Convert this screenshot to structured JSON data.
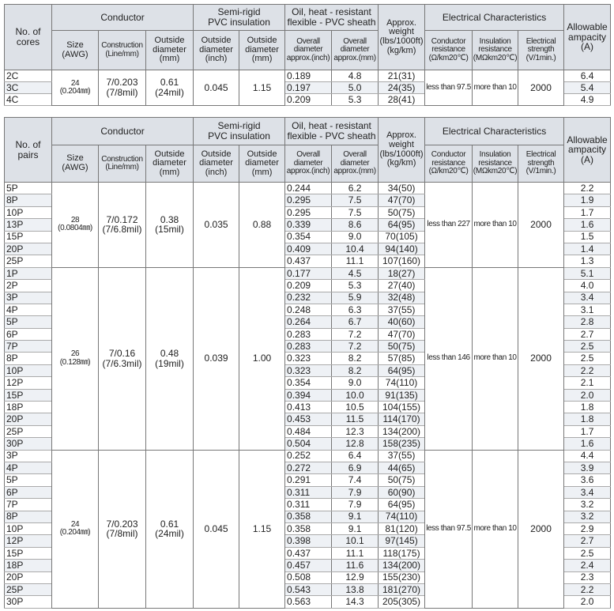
{
  "tables": [
    {
      "header": {
        "number": "No. of cores",
        "conductor": "Conductor",
        "insulation": "Semi-rigid\nPVC insulation",
        "sheath": "Oil, heat - resistant\nflexible - PVC sheath",
        "weight": "Approx.\nweight\n(lbs/1000ft)\n(kg/km)",
        "electrical": "Electrical Characteristics",
        "ampacity": "Allowable\nampacity\n(A)",
        "sub": [
          "Size\n(AWG)",
          "Construction\n(Line/mm)",
          "Outside\ndiameter\n(mm)",
          "Outside\ndiameter\n(inch)",
          "Outside\ndiameter\n(mm)",
          "Overall\ndiameter\napprox.(inch)",
          "Overall\ndiameter\napprox.(mm)",
          "Conductor\nresistance\n(Ω/km20℃)",
          "Insulation\nresistance\n(MΩkm20℃)",
          "Electrical\nstrength\n(V/1min.)"
        ]
      },
      "groups": [
        {
          "size": "24\n(0.204㎜)",
          "construction": "7/0.203\n(7/8mil)",
          "outside_diameter": "0.61\n(24mil)",
          "insulation_diameter": "0.045",
          "insulation_mm": "1.15",
          "conductor_resistance": "less than 97.5",
          "insulation_resistance": "more than 10",
          "strength": "2000",
          "rows": [
            [
              "2C",
              "0.189",
              "4.8",
              "21(31)",
              "6.4"
            ],
            [
              "3C",
              "0.197",
              "5.0",
              "24(35)",
              "5.4"
            ],
            [
              "4C",
              "0.209",
              "5.3",
              "28(41)",
              "4.9"
            ]
          ]
        }
      ]
    },
    {
      "header": {
        "number": "No. of pairs",
        "conductor": "Conductor",
        "insulation": "Semi-rigid\nPVC insulation",
        "sheath": "Oil, heat - resistant\nflexible - PVC sheath",
        "weight": "Approx.\nweight\n(lbs/1000ft)\n(kg/km)",
        "electrical": "Electrical Characteristics",
        "ampacity": "Allowable\nampacity\n(A)",
        "sub": [
          "Size\n(AWG)",
          "Construction\n(Line/mm)",
          "Outside\ndiameter\n(mm)",
          "Outside\ndiameter\n(inch)",
          "Outside\ndiameter\n(mm)",
          "Overall\ndiameter\napprox.(inch)",
          "Overall\ndiameter\napprox.(mm)",
          "Conductor\nresistance\n(Ω/km20℃)",
          "Insulation\nresistance\n(MΩkm20℃)",
          "Electrical\nstrength\n(V/1min.)"
        ]
      },
      "groups": [
        {
          "size": "28\n(0.0804㎜)",
          "construction": "7/0.172\n(7/6.8mil)",
          "outside_diameter": "0.38\n(15mil)",
          "insulation_diameter": "0.035",
          "insulation_mm": "0.88",
          "conductor_resistance": "less than 227",
          "insulation_resistance": "more than 10",
          "strength": "2000",
          "rows": [
            [
              "5P",
              "0.244",
              "6.2",
              "34(50)",
              "2.2"
            ],
            [
              "8P",
              "0.295",
              "7.5",
              "47(70)",
              "1.9"
            ],
            [
              "10P",
              "0.295",
              "7.5",
              "50(75)",
              "1.7"
            ],
            [
              "13P",
              "0.339",
              "8.6",
              "64(95)",
              "1.6"
            ],
            [
              "15P",
              "0.354",
              "9.0",
              "70(105)",
              "1.5"
            ],
            [
              "20P",
              "0.409",
              "10.4",
              "94(140)",
              "1.4"
            ],
            [
              "25P",
              "0.437",
              "11.1",
              "107(160)",
              "1.3"
            ]
          ]
        },
        {
          "size": "26\n(0.128㎜)",
          "construction": "7/0.16\n(7/6.3mil)",
          "outside_diameter": "0.48\n(19mil)",
          "insulation_diameter": "0.039",
          "insulation_mm": "1.00",
          "conductor_resistance": "less than 146",
          "insulation_resistance": "more than 10",
          "strength": "2000",
          "rows": [
            [
              "1P",
              "0.177",
              "4.5",
              "18(27)",
              "5.1"
            ],
            [
              "2P",
              "0.209",
              "5.3",
              "27(40)",
              "4.0"
            ],
            [
              "3P",
              "0.232",
              "5.9",
              "32(48)",
              "3.4"
            ],
            [
              "4P",
              "0.248",
              "6.3",
              "37(55)",
              "3.1"
            ],
            [
              "5P",
              "0.264",
              "6.7",
              "40(60)",
              "2.8"
            ],
            [
              "6P",
              "0.283",
              "7.2",
              "47(70)",
              "2.7"
            ],
            [
              "7P",
              "0.283",
              "7.2",
              "50(75)",
              "2.5"
            ],
            [
              "8P",
              "0.323",
              "8.2",
              "57(85)",
              "2.5"
            ],
            [
              "10P",
              "0.323",
              "8.2",
              "64(95)",
              "2.2"
            ],
            [
              "12P",
              "0.354",
              "9.0",
              "74(110)",
              "2.1"
            ],
            [
              "15P",
              "0.394",
              "10.0",
              "91(135)",
              "2.0"
            ],
            [
              "18P",
              "0.413",
              "10.5",
              "104(155)",
              "1.8"
            ],
            [
              "20P",
              "0.453",
              "11.5",
              "114(170)",
              "1.8"
            ],
            [
              "25P",
              "0.484",
              "12.3",
              "134(200)",
              "1.7"
            ],
            [
              "30P",
              "0.504",
              "12.8",
              "158(235)",
              "1.6"
            ]
          ]
        },
        {
          "size": "24\n(0.204㎜)",
          "construction": "7/0.203\n(7/8mil)",
          "outside_diameter": "0.61\n(24mil)",
          "insulation_diameter": "0.045",
          "insulation_mm": "1.15",
          "conductor_resistance": "less than 97.5",
          "insulation_resistance": "more than 10",
          "strength": "2000",
          "rows": [
            [
              "3P",
              "0.252",
              "6.4",
              "37(55)",
              "4.4"
            ],
            [
              "4P",
              "0.272",
              "6.9",
              "44(65)",
              "3.9"
            ],
            [
              "5P",
              "0.291",
              "7.4",
              "50(75)",
              "3.6"
            ],
            [
              "6P",
              "0.311",
              "7.9",
              "60(90)",
              "3.4"
            ],
            [
              "7P",
              "0.311",
              "7.9",
              "64(95)",
              "3.2"
            ],
            [
              "8P",
              "0.358",
              "9.1",
              "74(110)",
              "3.2"
            ],
            [
              "10P",
              "0.358",
              "9.1",
              "81(120)",
              "2.9"
            ],
            [
              "12P",
              "0.398",
              "10.1",
              "97(145)",
              "2.7"
            ],
            [
              "15P",
              "0.437",
              "11.1",
              "118(175)",
              "2.5"
            ],
            [
              "18P",
              "0.457",
              "11.6",
              "134(200)",
              "2.4"
            ],
            [
              "20P",
              "0.508",
              "12.9",
              "155(230)",
              "2.3"
            ],
            [
              "25P",
              "0.543",
              "13.8",
              "181(270)",
              "2.2"
            ],
            [
              "30P",
              "0.563",
              "14.3",
              "205(305)",
              "2.0"
            ]
          ]
        }
      ]
    }
  ]
}
